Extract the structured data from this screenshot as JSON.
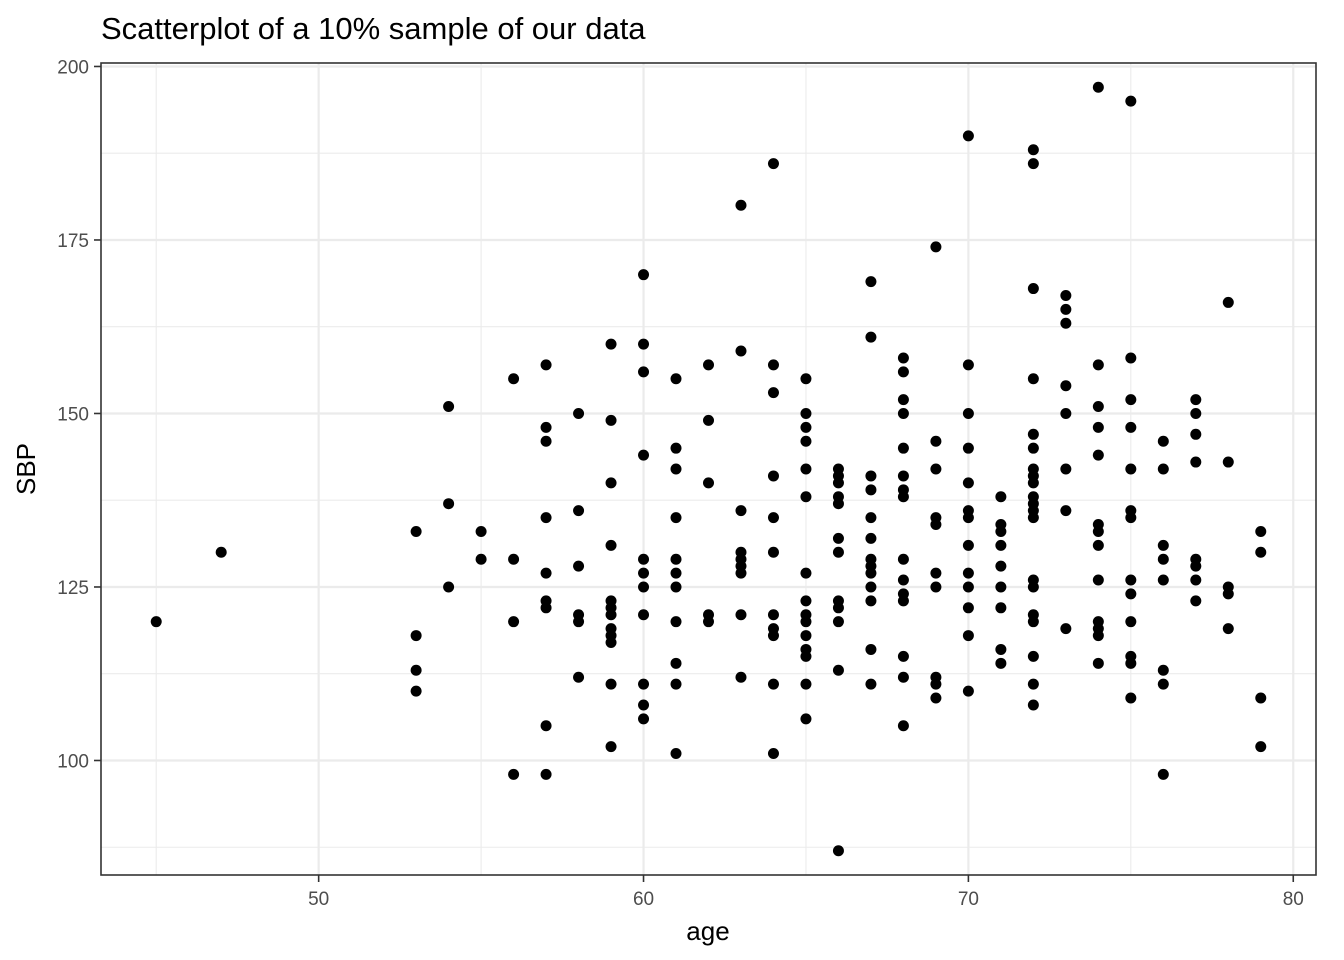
{
  "chart_data": {
    "type": "scatter",
    "title": "Scatterplot of a 10% sample of our data",
    "xlabel": "age",
    "ylabel": "SBP",
    "xlim": [
      43.3,
      80.7
    ],
    "ylim": [
      83.5,
      200.5
    ],
    "x_major_ticks": [
      50,
      60,
      70,
      80
    ],
    "x_minor_ticks": [
      45,
      55,
      65,
      75
    ],
    "y_major_ticks": [
      100,
      125,
      150,
      175,
      200
    ],
    "y_minor_ticks": [
      87.5,
      112.5,
      137.5,
      162.5,
      187.5
    ],
    "x_tick_labels": [
      "50",
      "60",
      "70",
      "80"
    ],
    "y_tick_labels": [
      "100",
      "125",
      "150",
      "175",
      "200"
    ],
    "grid": true,
    "legend": "none",
    "point_color": "#000000",
    "points": [
      [
        45,
        120
      ],
      [
        47,
        130
      ],
      [
        53,
        133
      ],
      [
        53,
        118
      ],
      [
        53,
        113
      ],
      [
        53,
        110
      ],
      [
        54,
        151
      ],
      [
        54,
        137
      ],
      [
        54,
        125
      ],
      [
        55,
        133
      ],
      [
        55,
        129
      ],
      [
        56,
        155
      ],
      [
        56,
        129
      ],
      [
        56,
        120
      ],
      [
        56,
        98
      ],
      [
        57,
        157
      ],
      [
        57,
        148
      ],
      [
        57,
        146
      ],
      [
        57,
        135
      ],
      [
        57,
        127
      ],
      [
        57,
        123
      ],
      [
        57,
        122
      ],
      [
        57,
        105
      ],
      [
        57,
        98
      ],
      [
        58,
        150
      ],
      [
        58,
        136
      ],
      [
        58,
        128
      ],
      [
        58,
        121
      ],
      [
        58,
        120
      ],
      [
        58,
        112
      ],
      [
        59,
        160
      ],
      [
        59,
        149
      ],
      [
        59,
        140
      ],
      [
        59,
        131
      ],
      [
        59,
        123
      ],
      [
        59,
        122
      ],
      [
        59,
        121
      ],
      [
        59,
        119
      ],
      [
        59,
        118
      ],
      [
        59,
        117
      ],
      [
        59,
        111
      ],
      [
        59,
        102
      ],
      [
        60,
        170
      ],
      [
        60,
        160
      ],
      [
        60,
        156
      ],
      [
        60,
        144
      ],
      [
        60,
        129
      ],
      [
        60,
        127
      ],
      [
        60,
        125
      ],
      [
        60,
        121
      ],
      [
        60,
        111
      ],
      [
        60,
        108
      ],
      [
        60,
        106
      ],
      [
        61,
        155
      ],
      [
        61,
        145
      ],
      [
        61,
        142
      ],
      [
        61,
        135
      ],
      [
        61,
        129
      ],
      [
        61,
        127
      ],
      [
        61,
        125
      ],
      [
        61,
        120
      ],
      [
        61,
        114
      ],
      [
        61,
        111
      ],
      [
        61,
        101
      ],
      [
        62,
        157
      ],
      [
        62,
        149
      ],
      [
        62,
        140
      ],
      [
        62,
        121
      ],
      [
        62,
        120
      ],
      [
        63,
        180
      ],
      [
        63,
        159
      ],
      [
        63,
        136
      ],
      [
        63,
        130
      ],
      [
        63,
        129
      ],
      [
        63,
        128
      ],
      [
        63,
        127
      ],
      [
        63,
        121
      ],
      [
        63,
        112
      ],
      [
        64,
        186
      ],
      [
        64,
        157
      ],
      [
        64,
        153
      ],
      [
        64,
        141
      ],
      [
        64,
        135
      ],
      [
        64,
        130
      ],
      [
        64,
        121
      ],
      [
        64,
        119
      ],
      [
        64,
        118
      ],
      [
        64,
        111
      ],
      [
        64,
        101
      ],
      [
        65,
        155
      ],
      [
        65,
        150
      ],
      [
        65,
        148
      ],
      [
        65,
        146
      ],
      [
        65,
        142
      ],
      [
        65,
        138
      ],
      [
        65,
        127
      ],
      [
        65,
        123
      ],
      [
        65,
        121
      ],
      [
        65,
        120
      ],
      [
        65,
        118
      ],
      [
        65,
        116
      ],
      [
        65,
        115
      ],
      [
        65,
        111
      ],
      [
        65,
        106
      ],
      [
        66,
        142
      ],
      [
        66,
        141
      ],
      [
        66,
        140
      ],
      [
        66,
        138
      ],
      [
        66,
        137
      ],
      [
        66,
        132
      ],
      [
        66,
        130
      ],
      [
        66,
        123
      ],
      [
        66,
        122
      ],
      [
        66,
        120
      ],
      [
        66,
        113
      ],
      [
        66,
        87
      ],
      [
        67,
        169
      ],
      [
        67,
        161
      ],
      [
        67,
        141
      ],
      [
        67,
        139
      ],
      [
        67,
        135
      ],
      [
        67,
        132
      ],
      [
        67,
        129
      ],
      [
        67,
        128
      ],
      [
        67,
        127
      ],
      [
        67,
        125
      ],
      [
        67,
        123
      ],
      [
        67,
        116
      ],
      [
        67,
        111
      ],
      [
        68,
        158
      ],
      [
        68,
        156
      ],
      [
        68,
        152
      ],
      [
        68,
        150
      ],
      [
        68,
        145
      ],
      [
        68,
        141
      ],
      [
        68,
        139
      ],
      [
        68,
        138
      ],
      [
        68,
        129
      ],
      [
        68,
        126
      ],
      [
        68,
        124
      ],
      [
        68,
        123
      ],
      [
        68,
        115
      ],
      [
        68,
        112
      ],
      [
        68,
        105
      ],
      [
        69,
        174
      ],
      [
        69,
        146
      ],
      [
        69,
        142
      ],
      [
        69,
        135
      ],
      [
        69,
        134
      ],
      [
        69,
        127
      ],
      [
        69,
        125
      ],
      [
        69,
        112
      ],
      [
        69,
        111
      ],
      [
        69,
        109
      ],
      [
        70,
        190
      ],
      [
        70,
        157
      ],
      [
        70,
        150
      ],
      [
        70,
        145
      ],
      [
        70,
        140
      ],
      [
        70,
        136
      ],
      [
        70,
        135
      ],
      [
        70,
        131
      ],
      [
        70,
        127
      ],
      [
        70,
        125
      ],
      [
        70,
        122
      ],
      [
        70,
        118
      ],
      [
        70,
        110
      ],
      [
        71,
        138
      ],
      [
        71,
        134
      ],
      [
        71,
        133
      ],
      [
        71,
        131
      ],
      [
        71,
        128
      ],
      [
        71,
        125
      ],
      [
        71,
        122
      ],
      [
        71,
        116
      ],
      [
        71,
        114
      ],
      [
        72,
        188
      ],
      [
        72,
        186
      ],
      [
        72,
        168
      ],
      [
        72,
        155
      ],
      [
        72,
        147
      ],
      [
        72,
        145
      ],
      [
        72,
        142
      ],
      [
        72,
        141
      ],
      [
        72,
        140
      ],
      [
        72,
        138
      ],
      [
        72,
        137
      ],
      [
        72,
        136
      ],
      [
        72,
        135
      ],
      [
        72,
        126
      ],
      [
        72,
        125
      ],
      [
        72,
        121
      ],
      [
        72,
        120
      ],
      [
        72,
        115
      ],
      [
        72,
        111
      ],
      [
        72,
        108
      ],
      [
        73,
        167
      ],
      [
        73,
        165
      ],
      [
        73,
        163
      ],
      [
        73,
        154
      ],
      [
        73,
        150
      ],
      [
        73,
        142
      ],
      [
        73,
        136
      ],
      [
        73,
        119
      ],
      [
        74,
        197
      ],
      [
        74,
        157
      ],
      [
        74,
        151
      ],
      [
        74,
        148
      ],
      [
        74,
        144
      ],
      [
        74,
        134
      ],
      [
        74,
        133
      ],
      [
        74,
        131
      ],
      [
        74,
        126
      ],
      [
        74,
        120
      ],
      [
        74,
        119
      ],
      [
        74,
        118
      ],
      [
        74,
        114
      ],
      [
        75,
        195
      ],
      [
        75,
        158
      ],
      [
        75,
        152
      ],
      [
        75,
        148
      ],
      [
        75,
        142
      ],
      [
        75,
        136
      ],
      [
        75,
        135
      ],
      [
        75,
        126
      ],
      [
        75,
        124
      ],
      [
        75,
        120
      ],
      [
        75,
        115
      ],
      [
        75,
        114
      ],
      [
        75,
        109
      ],
      [
        76,
        146
      ],
      [
        76,
        142
      ],
      [
        76,
        131
      ],
      [
        76,
        129
      ],
      [
        76,
        126
      ],
      [
        76,
        113
      ],
      [
        76,
        111
      ],
      [
        76,
        98
      ],
      [
        77,
        152
      ],
      [
        77,
        150
      ],
      [
        77,
        147
      ],
      [
        77,
        143
      ],
      [
        77,
        129
      ],
      [
        77,
        128
      ],
      [
        77,
        126
      ],
      [
        77,
        123
      ],
      [
        78,
        166
      ],
      [
        78,
        143
      ],
      [
        78,
        125
      ],
      [
        78,
        124
      ],
      [
        78,
        119
      ],
      [
        79,
        133
      ],
      [
        79,
        130
      ],
      [
        79,
        109
      ],
      [
        79,
        102
      ]
    ]
  }
}
